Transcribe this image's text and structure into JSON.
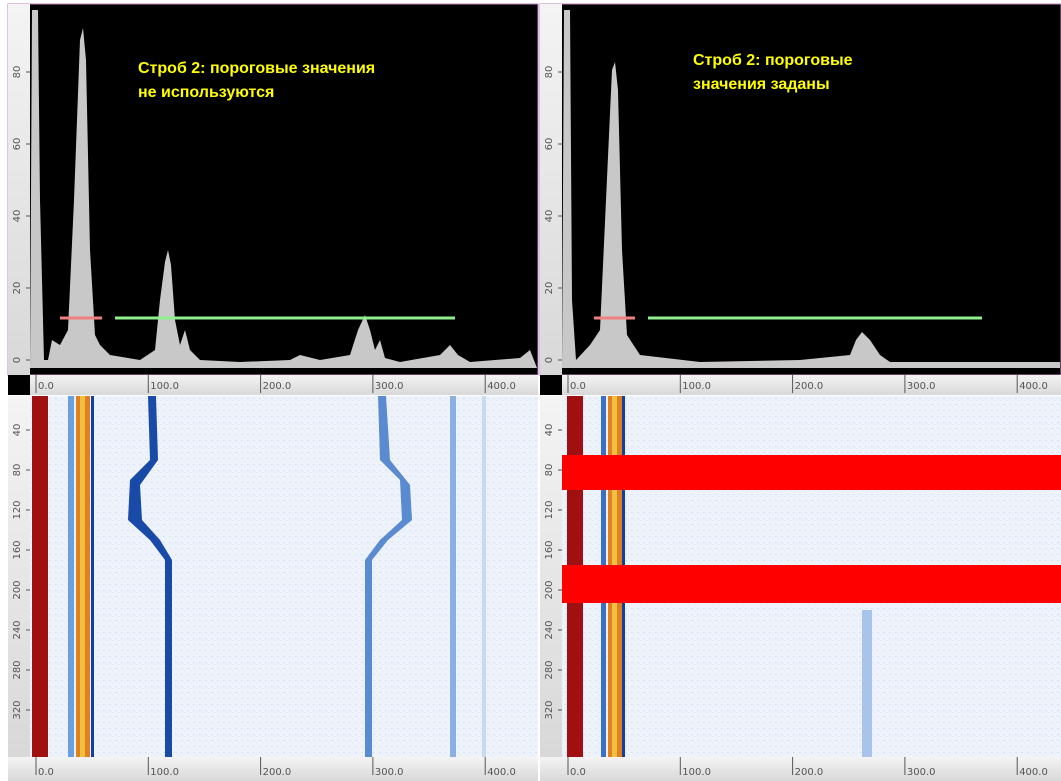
{
  "panels": [
    {
      "annotation": [
        "Строб 2: пороговые значения",
        "не используются"
      ],
      "ascan_yticks": [
        "0",
        "20",
        "40",
        "60",
        "80"
      ],
      "xticks": [
        "0.0",
        "100.0",
        "200.0",
        "300.0",
        "400.0"
      ],
      "cscan_yticks": [
        "40",
        "80",
        "120",
        "160",
        "200",
        "240",
        "280",
        "320"
      ]
    },
    {
      "annotation": [
        "Строб 2: пороговые",
        "значения заданы"
      ],
      "ascan_yticks": [
        "0",
        "20",
        "40",
        "60",
        "80"
      ],
      "xticks": [
        "0.0",
        "100.0",
        "200.0",
        "300.0",
        "400.0"
      ],
      "cscan_yticks": [
        "40",
        "80",
        "120",
        "160",
        "200",
        "240",
        "280",
        "320"
      ]
    }
  ]
}
